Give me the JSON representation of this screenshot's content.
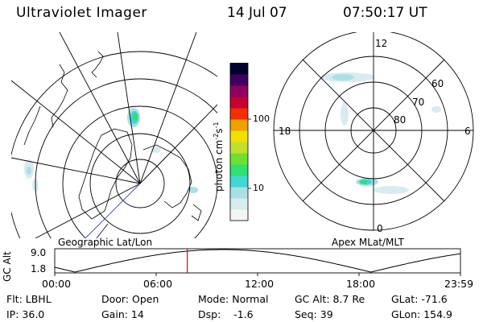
{
  "header": {
    "title": "Ultraviolet Imager",
    "date": "14 Jul 07",
    "time": "07:50:17 UT"
  },
  "geo_panel": {
    "label": "Geographic Lat/Lon"
  },
  "apex_panel": {
    "label": "Apex MLat/MLT",
    "mlt_labels": [
      "12",
      "18",
      "6",
      "0"
    ],
    "lat_labels": [
      "60",
      "70",
      "80"
    ]
  },
  "colorbar": {
    "unit_label": "photon cm",
    "unit_exp1": "-2",
    "unit_mid": "s",
    "unit_exp2": "-1",
    "tick_100": "100",
    "tick_10": "10",
    "colors": [
      "#f4f4f4",
      "#d8ecf0",
      "#a8e0e8",
      "#40d8d0",
      "#30e070",
      "#70e030",
      "#c0e030",
      "#f0e000",
      "#f0a000",
      "#f03000",
      "#c80030",
      "#900060",
      "#400060",
      "#000030"
    ]
  },
  "alt_plot": {
    "ylabel": "GC Alt",
    "ytick_top": "9.0",
    "ytick_bottom": "1.8",
    "xticks": [
      "00:00",
      "06:00",
      "12:00",
      "18:00",
      "23:59"
    ],
    "current_marker_hour": 7.84,
    "curve_color": "#000000",
    "marker_color": "#e00000"
  },
  "info": {
    "filter": "Flt: LBHL",
    "ip": "IP: 36.0",
    "door": "Door: Open",
    "gain": "Gain: 14",
    "mode": "Mode: Normal",
    "dsp": "Dsp:    -1.6",
    "gc_alt": "GC Alt: 8.7 Re",
    "seq": "Seq: 39",
    "glat": "GLat: -71.6",
    "glon": "GLon: 154.9"
  }
}
